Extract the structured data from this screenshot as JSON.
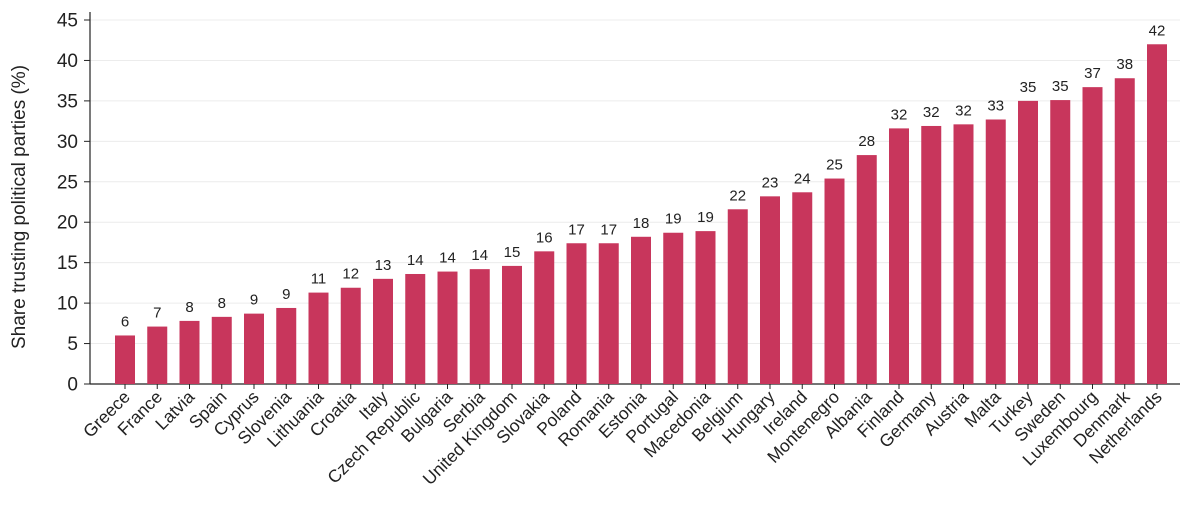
{
  "chart_data": {
    "type": "bar",
    "title": "",
    "xlabel": "",
    "ylabel": "Share trusting political parties (%)",
    "ylim": [
      0,
      45
    ],
    "yticks": [
      0,
      5,
      10,
      15,
      20,
      25,
      30,
      35,
      40,
      45
    ],
    "grid": true,
    "legend": "none",
    "bar_color": "#c8365c",
    "categories": [
      "Greece",
      "France",
      "Latvia",
      "Spain",
      "Cyprus",
      "Slovenia",
      "Lithuania",
      "Croatia",
      "Italy",
      "Czech Republic",
      "Bulgaria",
      "Serbia",
      "United Kingdom",
      "Slovakia",
      "Poland",
      "Romania",
      "Estonia",
      "Portugal",
      "Macedonia",
      "Belgium",
      "Hungary",
      "Ireland",
      "Montenegro",
      "Albania",
      "Finland",
      "Germany",
      "Austria",
      "Malta",
      "Turkey",
      "Sweden",
      "Luxembourg",
      "Denmark",
      "Netherlands"
    ],
    "values": [
      6.0,
      7.1,
      7.8,
      8.3,
      8.7,
      9.4,
      11.3,
      11.9,
      13.0,
      13.6,
      13.9,
      14.2,
      14.6,
      16.4,
      17.4,
      17.4,
      18.2,
      18.7,
      18.9,
      21.6,
      23.2,
      23.7,
      25.4,
      28.3,
      31.6,
      31.9,
      32.1,
      32.7,
      35.0,
      35.1,
      36.7,
      37.8,
      42.0
    ],
    "data_labels": [
      "6",
      "7",
      "8",
      "8",
      "9",
      "9",
      "11",
      "12",
      "13",
      "14",
      "14",
      "14",
      "15",
      "16",
      "17",
      "17",
      "18",
      "19",
      "19",
      "22",
      "23",
      "24",
      "25",
      "28",
      "32",
      "32",
      "32",
      "33",
      "35",
      "35",
      "37",
      "38",
      "42"
    ]
  }
}
